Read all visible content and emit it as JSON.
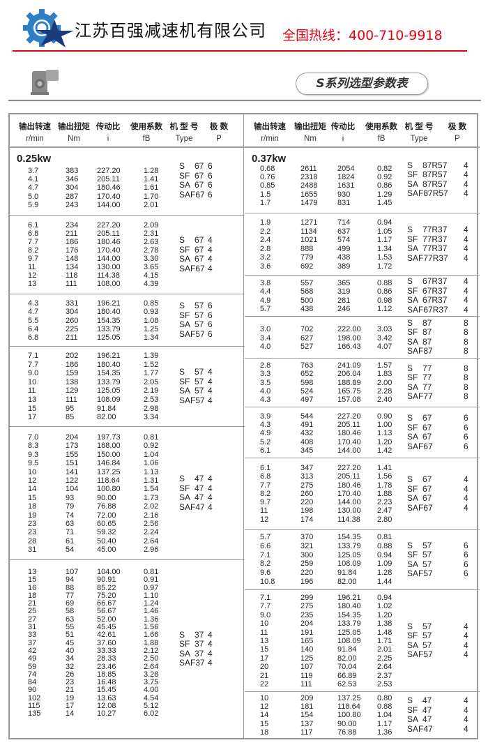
{
  "header": {
    "company": "江苏百强减速机有限公司",
    "hotline": "全国热线：400-710-9918",
    "title": "S系列选型参数表",
    "brand_colors": {
      "logo_blue": "#2e7fc6",
      "logo_navy": "#1a3a7a",
      "hotline_red": "#e60012"
    }
  },
  "columns": [
    {
      "label": "输出转速",
      "unit": "r/min"
    },
    {
      "label": "输出扭矩",
      "unit": "Nm"
    },
    {
      "label": "传动比",
      "unit": "i"
    },
    {
      "label": "使用系数",
      "unit": "fB"
    },
    {
      "label": "机 型 号",
      "unit": "Type"
    },
    {
      "label": "极  数",
      "unit": "P"
    }
  ],
  "left": {
    "power": "0.25kw",
    "blocks": [
      {
        "rows": [
          [
            "3.7",
            "383",
            "227.20",
            "1.28"
          ],
          [
            "4.1",
            "346",
            "205.11",
            "1.41"
          ],
          [
            "4.7",
            "304",
            "180.46",
            "1.61"
          ],
          [
            "5.0",
            "287",
            "170.40",
            "1.70"
          ],
          [
            "5.9",
            "243",
            "144.00",
            "2.01"
          ]
        ],
        "types": [
          [
            "S",
            "67",
            "6"
          ],
          [
            "SF",
            "67",
            "6"
          ],
          [
            "SA",
            "67",
            "6"
          ],
          [
            "SAF",
            "67",
            "6"
          ]
        ]
      },
      {
        "rows": [
          [
            "6.1",
            "234",
            "227.20",
            "2.09"
          ],
          [
            "6.8",
            "211",
            "205.11",
            "2.31"
          ],
          [
            "7.7",
            "186",
            "180.46",
            "2.63"
          ],
          [
            "8.2",
            "176",
            "170.40",
            "2.78"
          ],
          [
            "9.7",
            "148",
            "144.00",
            "3.30"
          ],
          [
            "11",
            "134",
            "130.00",
            "3.65"
          ],
          [
            "12",
            "118",
            "114.38",
            "4.15"
          ],
          [
            "13",
            "111",
            "108.00",
            "4.39"
          ]
        ],
        "types": [
          [
            "S",
            "67",
            "4"
          ],
          [
            "SF",
            "67",
            "4"
          ],
          [
            "SA",
            "67",
            "4"
          ],
          [
            "SAF",
            "67",
            "4"
          ]
        ]
      },
      {
        "rows": [
          [
            "4.3",
            "331",
            "196.21",
            "0.85"
          ],
          [
            "4.7",
            "304",
            "180.40",
            "0.93"
          ],
          [
            "5.5",
            "260",
            "154.35",
            "1.08"
          ],
          [
            "6.4",
            "225",
            "133.79",
            "1.25"
          ],
          [
            "6.8",
            "211",
            "125.05",
            "1.34"
          ]
        ],
        "types": [
          [
            "S",
            "57",
            "6"
          ],
          [
            "SF",
            "57",
            "6"
          ],
          [
            "SA",
            "57",
            "6"
          ],
          [
            "SAF",
            "57",
            "6"
          ]
        ]
      },
      {
        "rows": [
          [
            "7.1",
            "202",
            "196.21",
            "1.39"
          ],
          [
            "7.7",
            "186",
            "180.40",
            "1.52"
          ],
          [
            "9.0",
            "159",
            "154.35",
            "1.77"
          ],
          [
            "10",
            "138",
            "133.79",
            "2.05"
          ],
          [
            "11",
            "129",
            "125.05",
            "2.19"
          ],
          [
            "13",
            "111",
            "108.09",
            "2.53"
          ],
          [
            "15",
            "95",
            "91.84",
            "2.98"
          ],
          [
            "17",
            "85",
            "82.00",
            "3.34"
          ]
        ],
        "types": [
          [
            "S",
            "57",
            "4"
          ],
          [
            "SF",
            "57",
            "4"
          ],
          [
            "SA",
            "57",
            "4"
          ],
          [
            "SAF",
            "57",
            "4"
          ]
        ]
      },
      {
        "rows": [
          [
            "7.0",
            "204",
            "197.73",
            "0.81"
          ],
          [
            "8.3",
            "173",
            "168.00",
            "0.92"
          ],
          [
            "9.3",
            "155",
            "150.00",
            "1.04"
          ],
          [
            "9.5",
            "151",
            "146.84",
            "1.06"
          ],
          [
            "10",
            "141",
            "137.25",
            "1.13"
          ],
          [
            "12",
            "122",
            "118.64",
            "1.31"
          ],
          [
            "14",
            "104",
            "100.80",
            "1.54"
          ],
          [
            "15",
            "93",
            "90.00",
            "1.73"
          ],
          [
            "18",
            "79",
            "76.88",
            "2.02"
          ],
          [
            "19",
            "74",
            "72.00",
            "2.16"
          ],
          [
            "23",
            "63",
            "60.65",
            "2.56"
          ],
          [
            "23",
            "71",
            "59.32",
            "2.24"
          ],
          [
            "28",
            "61",
            "50.40",
            "2.64"
          ],
          [
            "31",
            "54",
            "45.00",
            "2.96"
          ]
        ],
        "types": [
          [
            "S",
            "47",
            "4"
          ],
          [
            "SF",
            "47",
            "4"
          ],
          [
            "SA",
            "47",
            "4"
          ],
          [
            "SAF",
            "47",
            "4"
          ]
        ]
      },
      {
        "rows": [
          [
            "13",
            "107",
            "104.00",
            "0.81"
          ],
          [
            "15",
            "94",
            "90.91",
            "0.91"
          ],
          [
            "16",
            "88",
            "85.22",
            "0.97"
          ],
          [
            "18",
            "77",
            "75.20",
            "1.10"
          ],
          [
            "21",
            "69",
            "66.67",
            "1.24"
          ],
          [
            "25",
            "58",
            "56.67",
            "1.46"
          ],
          [
            "27",
            "63",
            "52.00",
            "1.36"
          ],
          [
            "31",
            "55",
            "45.45",
            "1.56"
          ],
          [
            "33",
            "51",
            "42.61",
            "1.66"
          ],
          [
            "37",
            "45",
            "37.60",
            "1.88"
          ],
          [
            "42",
            "40",
            "33.33",
            "2.12"
          ],
          [
            "49",
            "34",
            "28.33",
            "2.50"
          ],
          [
            "59",
            "32",
            "23.46",
            "2.64"
          ],
          [
            "74",
            "26",
            "18.85",
            "3.28"
          ],
          [
            "84",
            "23",
            "16.48",
            "3.75"
          ],
          [
            "90",
            "21",
            "15.45",
            "4.00"
          ],
          [
            "102",
            "19",
            "13.63",
            "4.54"
          ],
          [
            "115",
            "17",
            "12.08",
            "5.12"
          ],
          [
            "135",
            "14",
            "10.27",
            "6.02"
          ]
        ],
        "types": [
          [
            "S",
            "37",
            "4"
          ],
          [
            "SF",
            "37",
            "4"
          ],
          [
            "SA",
            "37",
            "4"
          ],
          [
            "SAF",
            "37",
            "4"
          ]
        ]
      }
    ]
  },
  "right": {
    "power": "0.37kw",
    "blocks": [
      {
        "rows": [
          [
            "0.68",
            "2611",
            "2054",
            "0.82"
          ],
          [
            "0.76",
            "2318",
            "1824",
            "0.92"
          ],
          [
            "0.85",
            "2488",
            "1631",
            "0.86"
          ],
          [
            "1.5",
            "1655",
            "930",
            "1.29"
          ],
          [
            "1.7",
            "1479",
            "831",
            "1.45"
          ]
        ],
        "types": [
          [
            "S",
            "87R57",
            "4"
          ],
          [
            "SF",
            "87R57",
            "4"
          ],
          [
            "SA",
            "87R57",
            "4"
          ],
          [
            "SAF",
            "87R57",
            "4"
          ]
        ]
      },
      {
        "rows": [
          [
            "1.9",
            "1271",
            "714",
            "0.94"
          ],
          [
            "2.2",
            "1134",
            "637",
            "1.05"
          ],
          [
            "2.4",
            "1021",
            "574",
            "1.17"
          ],
          [
            "2.8",
            "888",
            "499",
            "1.34"
          ],
          [
            "3.2",
            "779",
            "438",
            "1.53"
          ],
          [
            "3.6",
            "692",
            "389",
            "1.72"
          ]
        ],
        "types": [
          [
            "S",
            "77R37",
            "4"
          ],
          [
            "SF",
            "77R37",
            "4"
          ],
          [
            "SA",
            "77R37",
            "4"
          ],
          [
            "SAF",
            "77R37",
            "4"
          ]
        ]
      },
      {
        "rows": [
          [
            "3.8",
            "557",
            "365",
            "0.88"
          ],
          [
            "4.4",
            "568",
            "319",
            "0.86"
          ],
          [
            "4.9",
            "500",
            "281",
            "0.98"
          ],
          [
            "5.7",
            "438",
            "246",
            "1.12"
          ]
        ],
        "types": [
          [
            "S",
            "67R37",
            "4"
          ],
          [
            "SF",
            "67R37",
            "4"
          ],
          [
            "SA",
            "67R37",
            "4"
          ],
          [
            "SAF",
            "67R37",
            "4"
          ]
        ]
      },
      {
        "rows": [
          [
            "3.0",
            "702",
            "222.00",
            "3.03"
          ],
          [
            "3.4",
            "627",
            "198.00",
            "3.42"
          ],
          [
            "4.0",
            "527",
            "166.43",
            "4.07"
          ]
        ],
        "types": [
          [
            "S",
            "87",
            "8"
          ],
          [
            "SF",
            "87",
            "8"
          ],
          [
            "SA",
            "87",
            "8"
          ],
          [
            "SAF",
            "87",
            "8"
          ]
        ]
      },
      {
        "rows": [
          [
            "2.8",
            "763",
            "241.09",
            "1.57"
          ],
          [
            "3.3",
            "652",
            "206.04",
            "1.83"
          ],
          [
            "3.5",
            "598",
            "188.89",
            "2.00"
          ],
          [
            "4.0",
            "524",
            "165.75",
            "2.28"
          ],
          [
            "4.3",
            "497",
            "157.08",
            "2.40"
          ]
        ],
        "types": [
          [
            "S",
            "77",
            "8"
          ],
          [
            "SF",
            "77",
            "8"
          ],
          [
            "SA",
            "77",
            "8"
          ],
          [
            "SAF",
            "77",
            "8"
          ]
        ]
      },
      {
        "rows": [
          [
            "3.9",
            "544",
            "227.20",
            "0.90"
          ],
          [
            "4.3",
            "491",
            "205.11",
            "1.00"
          ],
          [
            "4.9",
            "432",
            "180.46",
            "1.13"
          ],
          [
            "5.2",
            "408",
            "170.40",
            "1.20"
          ],
          [
            "6.1",
            "345",
            "144.00",
            "1.42"
          ]
        ],
        "types": [
          [
            "S",
            "67",
            "6"
          ],
          [
            "SF",
            "67",
            "6"
          ],
          [
            "SA",
            "67",
            "6"
          ],
          [
            "SAF",
            "67",
            "6"
          ]
        ]
      },
      {
        "rows": [
          [
            "6.1",
            "347",
            "227.20",
            "1.41"
          ],
          [
            "6.8",
            "313",
            "205.11",
            "1.56"
          ],
          [
            "7.7",
            "275",
            "180.46",
            "1.78"
          ],
          [
            "8.2",
            "260",
            "170.40",
            "1.88"
          ],
          [
            "9.7",
            "220",
            "144.00",
            "2.23"
          ],
          [
            "11",
            "198",
            "130.00",
            "2.47"
          ],
          [
            "12",
            "174",
            "114.38",
            "2.80"
          ]
        ],
        "types": [
          [
            "S",
            "67",
            "4"
          ],
          [
            "SF",
            "67",
            "4"
          ],
          [
            "SA",
            "67",
            "4"
          ],
          [
            "SAF",
            "67",
            "4"
          ]
        ]
      },
      {
        "rows": [
          [
            "5.7",
            "370",
            "154.35",
            "0.81"
          ],
          [
            "6.6",
            "321",
            "133.79",
            "0.88"
          ],
          [
            "7.1",
            "300",
            "125.05",
            "0.94"
          ],
          [
            "8.2",
            "259",
            "108.09",
            "1.09"
          ],
          [
            "9.6",
            "220",
            "91.84",
            "1.28"
          ],
          [
            "10.8",
            "196",
            "82.00",
            "1.44"
          ]
        ],
        "types": [
          [
            "S",
            "57",
            "6"
          ],
          [
            "SF",
            "57",
            "6"
          ],
          [
            "SA",
            "57",
            "6"
          ],
          [
            "SAF",
            "57",
            "6"
          ]
        ]
      },
      {
        "rows": [
          [
            "7.1",
            "299",
            "196.21",
            "0.94"
          ],
          [
            "7.7",
            "275",
            "180.40",
            "1.02"
          ],
          [
            "9.0",
            "235",
            "154.35",
            "1.20"
          ],
          [
            "10",
            "204",
            "133.79",
            "1.38"
          ],
          [
            "11",
            "191",
            "125.05",
            "1.48"
          ],
          [
            "13",
            "165",
            "108.09",
            "1.71"
          ],
          [
            "15",
            "140",
            "91.84",
            "2.01"
          ],
          [
            "17",
            "125",
            "82.00",
            "2.25"
          ],
          [
            "20",
            "107",
            "70.04",
            "2.64"
          ],
          [
            "21",
            "119",
            "66.89",
            "2.37"
          ],
          [
            "22",
            "111",
            "62.53",
            "2.53"
          ]
        ],
        "types": [
          [
            "S",
            "57",
            "4"
          ],
          [
            "SF",
            "57",
            "4"
          ],
          [
            "SA",
            "57",
            "4"
          ],
          [
            "SAF",
            "57",
            "4"
          ]
        ]
      },
      {
        "rows": [
          [
            "10",
            "209",
            "137.25",
            "0.80"
          ],
          [
            "12",
            "181",
            "118.64",
            "0.88"
          ],
          [
            "14",
            "154",
            "100.80",
            "1.04"
          ],
          [
            "15",
            "137",
            "90.00",
            "1.17"
          ],
          [
            "18",
            "117",
            "76.88",
            "1.36"
          ]
        ],
        "types": [
          [
            "S",
            "47",
            "4"
          ],
          [
            "SF",
            "47",
            "4"
          ],
          [
            "SA",
            "47",
            "4"
          ],
          [
            "SAF",
            "47",
            "4"
          ]
        ]
      }
    ]
  }
}
